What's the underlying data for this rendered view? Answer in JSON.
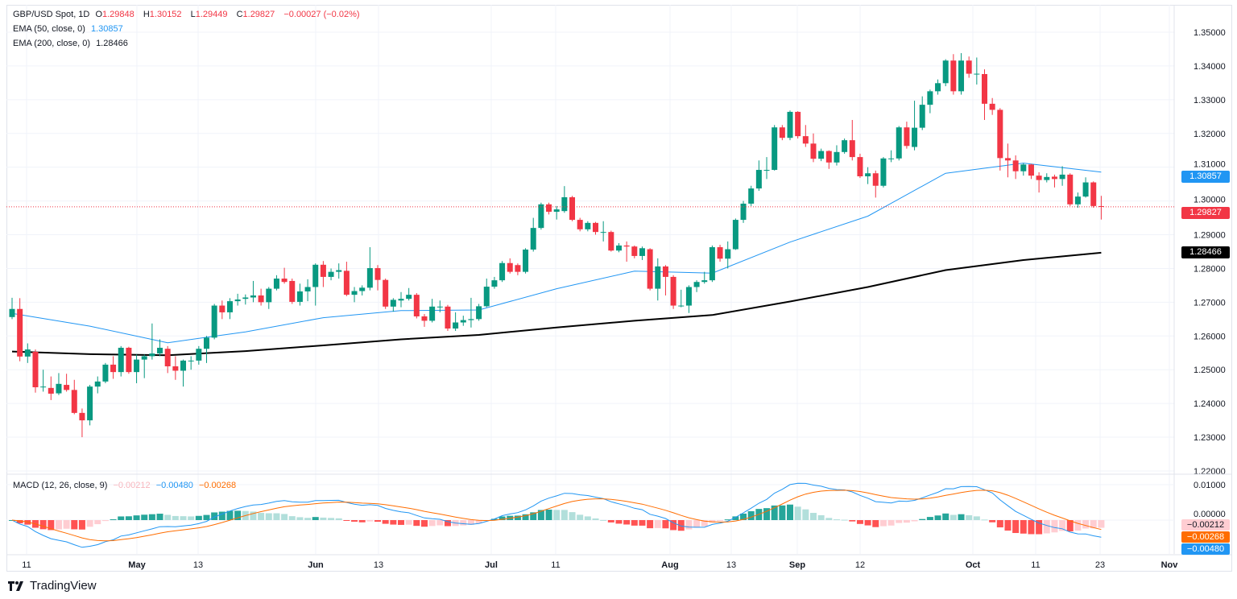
{
  "header": {
    "symbol": "GBP/USD Spot, 1D",
    "o_label": "O",
    "o": "1.29848",
    "h_label": "H",
    "h": "1.30152",
    "l_label": "L",
    "l": "1.29449",
    "c_label": "C",
    "c": "1.29827",
    "change": "−0.00027 (−0.02%)"
  },
  "ema50": {
    "label": "EMA (50, close, 0)",
    "value": "1.30857",
    "color": "#2196f3"
  },
  "ema200": {
    "label": "EMA (200, close, 0)",
    "value": "1.28466",
    "color": "#000000"
  },
  "macd": {
    "label": "MACD (12, 26, close, 9)",
    "hist": "−0.00212",
    "macd": "−0.00480",
    "signal": "−0.00268",
    "fast": 12,
    "slow": 26,
    "signal_len": 9,
    "axis_ticks": [
      "0.01000",
      "0.00000"
    ],
    "colors": {
      "macd": "#2196f3",
      "signal": "#ff6d00",
      "hist_up_strong": "#26a69a",
      "hist_up_weak": "#b2dfdb",
      "hist_down_strong": "#ff5252",
      "hist_down_weak": "#ffcdd2"
    }
  },
  "price_badges": {
    "ema50": "1.30857",
    "last": "1.29827",
    "ema200": "1.28466"
  },
  "footer": {
    "brand": "TradingView"
  },
  "chart_data": {
    "type": "candlestick",
    "title": "GBP/USD Spot, 1D",
    "ylim": [
      1.22,
      1.35
    ],
    "y_ticks": [
      "1.35000",
      "1.34000",
      "1.33000",
      "1.32000",
      "1.31000",
      "1.30000",
      "1.29000",
      "1.28000",
      "1.27000",
      "1.26000",
      "1.25000",
      "1.24000",
      "1.23000",
      "1.22000"
    ],
    "x_ticks": [
      "11",
      "May",
      "13",
      "Jun",
      "13",
      "Jul",
      "11",
      "Aug",
      "13",
      "Sep",
      "12",
      "Oct",
      "11",
      "23",
      "Nov"
    ],
    "grid": true,
    "colors": {
      "up": "#089981",
      "down": "#f23645"
    },
    "last_price": 1.29827,
    "ohlc": [
      [
        1.2656,
        1.2713,
        1.265,
        1.268
      ],
      [
        1.268,
        1.2712,
        1.2525,
        1.2539
      ],
      [
        1.2539,
        1.2578,
        1.252,
        1.256
      ],
      [
        1.2553,
        1.256,
        1.2432,
        1.2448
      ],
      [
        1.2448,
        1.25,
        1.2435,
        1.245
      ],
      [
        1.2446,
        1.248,
        1.241,
        1.2429
      ],
      [
        1.243,
        1.249,
        1.2425,
        1.2458
      ],
      [
        1.2455,
        1.2488,
        1.2435,
        1.244
      ],
      [
        1.244,
        1.247,
        1.2368,
        1.2372
      ],
      [
        1.2372,
        1.2385,
        1.23,
        1.235
      ],
      [
        1.235,
        1.2455,
        1.2335,
        1.245
      ],
      [
        1.245,
        1.248,
        1.243,
        1.2465
      ],
      [
        1.2465,
        1.252,
        1.246,
        1.2515
      ],
      [
        1.2515,
        1.254,
        1.2473,
        1.2493
      ],
      [
        1.2493,
        1.257,
        1.248,
        1.2565
      ],
      [
        1.2565,
        1.2568,
        1.2488,
        1.2493
      ],
      [
        1.2493,
        1.2545,
        1.246,
        1.253
      ],
      [
        1.253,
        1.2545,
        1.2475,
        1.254
      ],
      [
        1.254,
        1.2637,
        1.253,
        1.2548
      ],
      [
        1.2548,
        1.259,
        1.254,
        1.2565
      ],
      [
        1.2562,
        1.257,
        1.249,
        1.251
      ],
      [
        1.251,
        1.254,
        1.247,
        1.2497
      ],
      [
        1.2497,
        1.253,
        1.245,
        1.2527
      ],
      [
        1.2527,
        1.254,
        1.25,
        1.2527
      ],
      [
        1.2527,
        1.257,
        1.2515,
        1.2562
      ],
      [
        1.2562,
        1.26,
        1.252,
        1.2595
      ],
      [
        1.2595,
        1.2695,
        1.259,
        1.269
      ],
      [
        1.269,
        1.2705,
        1.265,
        1.267
      ],
      [
        1.267,
        1.2712,
        1.265,
        1.2703
      ],
      [
        1.2703,
        1.2725,
        1.269,
        1.2708
      ],
      [
        1.271,
        1.2723,
        1.2693,
        1.2714
      ],
      [
        1.2714,
        1.2763,
        1.27,
        1.272
      ],
      [
        1.272,
        1.274,
        1.269,
        1.27
      ],
      [
        1.27,
        1.2745,
        1.268,
        1.274
      ],
      [
        1.274,
        1.278,
        1.2735,
        1.277
      ],
      [
        1.277,
        1.2802,
        1.2755,
        1.276
      ],
      [
        1.2763,
        1.277,
        1.2695,
        1.2701
      ],
      [
        1.2701,
        1.2755,
        1.269,
        1.2732
      ],
      [
        1.2732,
        1.2768,
        1.2703,
        1.2745
      ],
      [
        1.2745,
        1.2815,
        1.269,
        1.2811
      ],
      [
        1.2811,
        1.2822,
        1.2745,
        1.2775
      ],
      [
        1.2775,
        1.28,
        1.2765,
        1.279
      ],
      [
        1.279,
        1.2815,
        1.277,
        1.2795
      ],
      [
        1.2793,
        1.282,
        1.2718,
        1.2722
      ],
      [
        1.2722,
        1.2745,
        1.27,
        1.2733
      ],
      [
        1.2733,
        1.275,
        1.272,
        1.2743
      ],
      [
        1.2743,
        1.2863,
        1.2735,
        1.2801
      ],
      [
        1.2801,
        1.281,
        1.2735,
        1.2766
      ],
      [
        1.2766,
        1.277,
        1.268,
        1.2687
      ],
      [
        1.2687,
        1.2712,
        1.2672,
        1.2707
      ],
      [
        1.2705,
        1.273,
        1.2685,
        1.271
      ],
      [
        1.271,
        1.2742,
        1.2705,
        1.2722
      ],
      [
        1.2722,
        1.2727,
        1.2652,
        1.2658
      ],
      [
        1.2658,
        1.2665,
        1.2627,
        1.2645
      ],
      [
        1.2645,
        1.271,
        1.264,
        1.2687
      ],
      [
        1.2687,
        1.2705,
        1.267,
        1.2687
      ],
      [
        1.2687,
        1.2692,
        1.2615,
        1.2622
      ],
      [
        1.2622,
        1.267,
        1.2615,
        1.264
      ],
      [
        1.264,
        1.266,
        1.263,
        1.2647
      ],
      [
        1.2647,
        1.2713,
        1.2625,
        1.265
      ],
      [
        1.265,
        1.2695,
        1.2645,
        1.2688
      ],
      [
        1.2688,
        1.277,
        1.2685,
        1.2746
      ],
      [
        1.2746,
        1.2775,
        1.274,
        1.2765
      ],
      [
        1.2765,
        1.2822,
        1.276,
        1.2816
      ],
      [
        1.2816,
        1.283,
        1.2785,
        1.279
      ],
      [
        1.281,
        1.2815,
        1.278,
        1.279
      ],
      [
        1.279,
        1.286,
        1.2785,
        1.2856
      ],
      [
        1.2856,
        1.295,
        1.285,
        1.292
      ],
      [
        1.292,
        1.2995,
        1.2915,
        1.299
      ],
      [
        1.299,
        1.2995,
        1.296,
        1.2968
      ],
      [
        1.2968,
        1.2985,
        1.2945,
        1.2975
      ],
      [
        1.297,
        1.3044,
        1.2965,
        1.3011
      ],
      [
        1.3011,
        1.3015,
        1.294,
        1.2944
      ],
      [
        1.2944,
        1.295,
        1.291,
        1.2916
      ],
      [
        1.2916,
        1.294,
        1.291,
        1.2935
      ],
      [
        1.2935,
        1.2938,
        1.29,
        1.2908
      ],
      [
        1.2908,
        1.294,
        1.288,
        1.2908
      ],
      [
        1.2908,
        1.2912,
        1.285,
        1.2853
      ],
      [
        1.2853,
        1.2875,
        1.2848,
        1.2868
      ],
      [
        1.2868,
        1.288,
        1.282,
        1.2865
      ],
      [
        1.2865,
        1.2868,
        1.283,
        1.2837
      ],
      [
        1.2837,
        1.2865,
        1.2825,
        1.286
      ],
      [
        1.2857,
        1.286,
        1.2735,
        1.274
      ],
      [
        1.274,
        1.283,
        1.2705,
        1.2806
      ],
      [
        1.2806,
        1.281,
        1.272,
        1.2775
      ],
      [
        1.2775,
        1.278,
        1.268,
        1.269
      ],
      [
        1.269,
        1.2737,
        1.2685,
        1.269
      ],
      [
        1.269,
        1.275,
        1.2668,
        1.2745
      ],
      [
        1.2745,
        1.2765,
        1.273,
        1.276
      ],
      [
        1.276,
        1.279,
        1.2755,
        1.2765
      ],
      [
        1.2765,
        1.2868,
        1.276,
        1.2863
      ],
      [
        1.2863,
        1.287,
        1.282,
        1.2829
      ],
      [
        1.2829,
        1.288,
        1.28,
        1.2857
      ],
      [
        1.2857,
        1.2948,
        1.2855,
        1.2944
      ],
      [
        1.2944,
        1.3,
        1.2935,
        1.2992
      ],
      [
        1.2992,
        1.3045,
        1.2985,
        1.3037
      ],
      [
        1.3037,
        1.312,
        1.303,
        1.3092
      ],
      [
        1.3092,
        1.313,
        1.3065,
        1.3092
      ],
      [
        1.3092,
        1.3225,
        1.309,
        1.3218
      ],
      [
        1.3218,
        1.3225,
        1.318,
        1.3187
      ],
      [
        1.3187,
        1.3268,
        1.318,
        1.3264
      ],
      [
        1.3264,
        1.3266,
        1.3185,
        1.3192
      ],
      [
        1.3192,
        1.3225,
        1.316,
        1.317
      ],
      [
        1.317,
        1.32,
        1.3115,
        1.3125
      ],
      [
        1.3125,
        1.3155,
        1.3118,
        1.3148
      ],
      [
        1.3148,
        1.315,
        1.3095,
        1.3114
      ],
      [
        1.3114,
        1.3165,
        1.3105,
        1.3145
      ],
      [
        1.3145,
        1.3185,
        1.314,
        1.318
      ],
      [
        1.318,
        1.324,
        1.312,
        1.313
      ],
      [
        1.313,
        1.314,
        1.3068,
        1.3073
      ],
      [
        1.3073,
        1.31,
        1.305,
        1.3082
      ],
      [
        1.3082,
        1.309,
        1.301,
        1.3045
      ],
      [
        1.3045,
        1.313,
        1.304,
        1.3126
      ],
      [
        1.3126,
        1.315,
        1.3115,
        1.3126
      ],
      [
        1.3126,
        1.3222,
        1.312,
        1.3218
      ],
      [
        1.3218,
        1.3235,
        1.3155,
        1.3163
      ],
      [
        1.316,
        1.3297,
        1.315,
        1.3217
      ],
      [
        1.3217,
        1.331,
        1.321,
        1.3285
      ],
      [
        1.3285,
        1.333,
        1.326,
        1.3325
      ],
      [
        1.3325,
        1.336,
        1.3315,
        1.3349
      ],
      [
        1.3349,
        1.342,
        1.334,
        1.3416
      ],
      [
        1.3416,
        1.3435,
        1.3315,
        1.3325
      ],
      [
        1.3325,
        1.3438,
        1.3315,
        1.3416
      ],
      [
        1.3416,
        1.3428,
        1.3365,
        1.3377
      ],
      [
        1.3377,
        1.3425,
        1.3345,
        1.3377
      ],
      [
        1.3376,
        1.339,
        1.324,
        1.3288
      ],
      [
        1.3288,
        1.3305,
        1.3255,
        1.327
      ],
      [
        1.327,
        1.3275,
        1.309,
        1.3127
      ],
      [
        1.3127,
        1.317,
        1.307,
        1.312
      ],
      [
        1.312,
        1.3135,
        1.3065,
        1.3088
      ],
      [
        1.3088,
        1.3112,
        1.3075,
        1.3108
      ],
      [
        1.3108,
        1.311,
        1.3065,
        1.3075
      ],
      [
        1.3075,
        1.3085,
        1.3025,
        1.3062
      ],
      [
        1.3062,
        1.3082,
        1.3055,
        1.3071
      ],
      [
        1.3072,
        1.3078,
        1.304,
        1.3065
      ],
      [
        1.3065,
        1.3103,
        1.3045,
        1.3078
      ],
      [
        1.3078,
        1.3082,
        1.2985,
        1.299
      ],
      [
        1.299,
        1.3025,
        1.298,
        1.3013
      ],
      [
        1.3013,
        1.307,
        1.301,
        1.3055
      ],
      [
        1.3055,
        1.3058,
        1.298,
        1.2985
      ],
      [
        1.29848,
        1.30152,
        1.29449,
        1.29827
      ]
    ],
    "ema50_samples": [
      1.2667,
      1.2629,
      1.258,
      1.2612,
      1.2654,
      1.2675,
      1.2677,
      1.274,
      1.2792,
      1.2786,
      1.2878,
      1.2955,
      1.3082,
      1.3112,
      1.30857
    ],
    "ema200_samples": [
      1.2554,
      1.2546,
      1.2543,
      1.2555,
      1.2572,
      1.259,
      1.2603,
      1.2625,
      1.2645,
      1.2662,
      1.2702,
      1.2745,
      1.2795,
      1.2825,
      1.28466
    ]
  }
}
